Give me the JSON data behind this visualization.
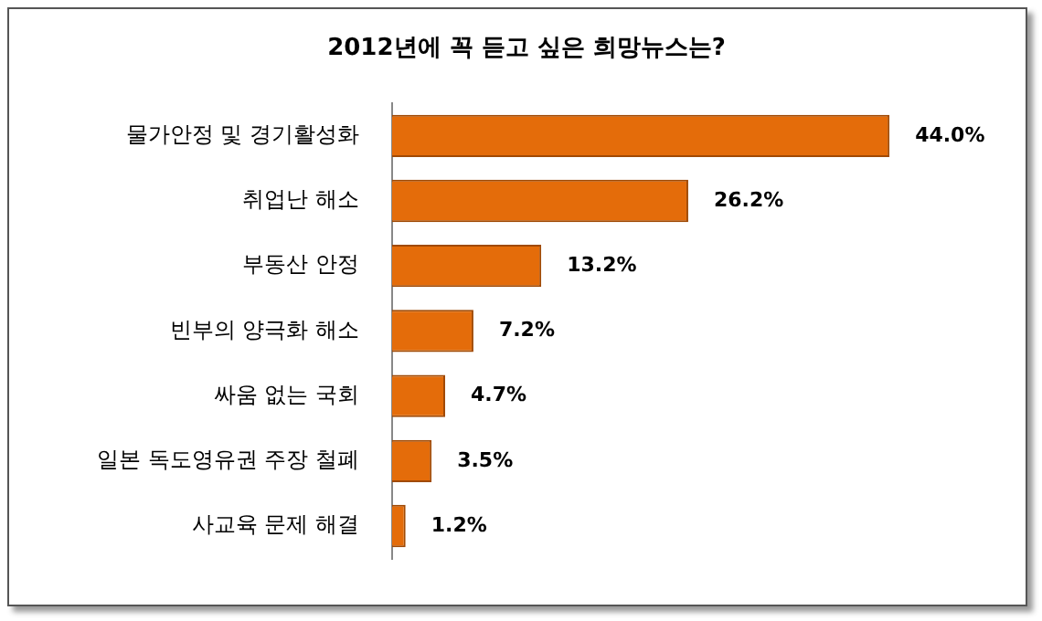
{
  "chart_data": {
    "type": "bar",
    "orientation": "horizontal",
    "title": "2012년에 꼭 듣고 싶은 희망뉴스는?",
    "categories": [
      "물가안정 및 경기활성화",
      "취업난 해소",
      "부동산 안정",
      "빈부의 양극화 해소",
      "싸움 없는 국회",
      "일본 독도영유권 주장 철폐",
      "사교육 문제 해결"
    ],
    "values": [
      44.0,
      26.2,
      13.2,
      7.2,
      4.7,
      3.5,
      1.2
    ],
    "value_labels": [
      "44.0%",
      "26.2%",
      "13.2%",
      "7.2%",
      "4.7%",
      "3.5%",
      "1.2%"
    ],
    "color": "#e46c0a",
    "legend": false
  }
}
